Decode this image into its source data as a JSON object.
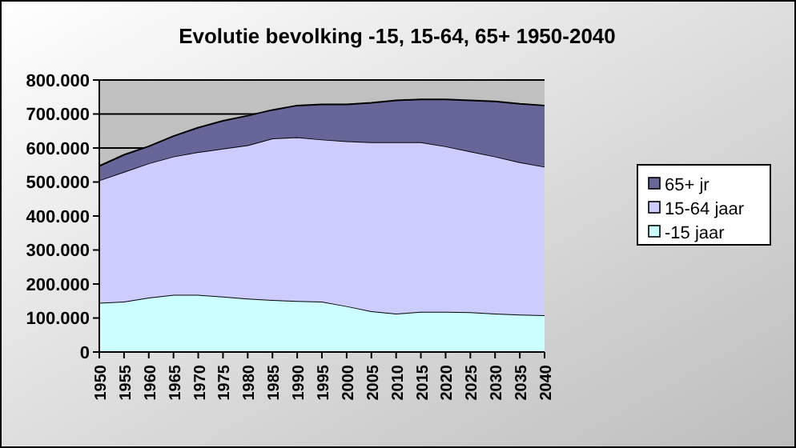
{
  "chart_data": {
    "type": "area",
    "title": "Evolutie bevolking -15, 15-64, 65+ 1950-2040",
    "stacked": true,
    "categories": [
      "1950",
      "1955",
      "1960",
      "1965",
      "1970",
      "1975",
      "1980",
      "1985",
      "1990",
      "1995",
      "2000",
      "2005",
      "2010",
      "2015",
      "2020",
      "2025",
      "2030",
      "2035",
      "2040"
    ],
    "series": [
      {
        "name": "-15 jaar",
        "color": "#ccffff",
        "values": [
          145000,
          148000,
          160000,
          168000,
          168000,
          163000,
          157000,
          153000,
          150000,
          148000,
          135000,
          120000,
          113000,
          118000,
          118000,
          117000,
          113000,
          110000,
          108000
        ]
      },
      {
        "name": "15-64 jaar",
        "color": "#ccccff",
        "values": [
          360000,
          382000,
          395000,
          407000,
          420000,
          435000,
          451000,
          475000,
          482000,
          477000,
          485000,
          497000,
          504000,
          499000,
          487000,
          473000,
          462000,
          448000,
          437000
        ]
      },
      {
        "name": "65+ jr",
        "color": "#666699",
        "values": [
          42000,
          50000,
          50000,
          60000,
          72000,
          82000,
          87000,
          84000,
          93000,
          103000,
          108000,
          116000,
          123000,
          126000,
          138000,
          150000,
          162000,
          172000,
          180000
        ]
      }
    ],
    "ylim": [
      0,
      800000
    ],
    "yticks": [
      {
        "value": 0,
        "label": "0"
      },
      {
        "value": 100000,
        "label": "100.000"
      },
      {
        "value": 200000,
        "label": "200.000"
      },
      {
        "value": 300000,
        "label": "300.000"
      },
      {
        "value": 400000,
        "label": "400.000"
      },
      {
        "value": 500000,
        "label": "500.000"
      },
      {
        "value": 600000,
        "label": "600.000"
      },
      {
        "value": 700000,
        "label": "700.000"
      },
      {
        "value": 800000,
        "label": "800.000"
      }
    ],
    "grid": "y",
    "legend": "right"
  }
}
